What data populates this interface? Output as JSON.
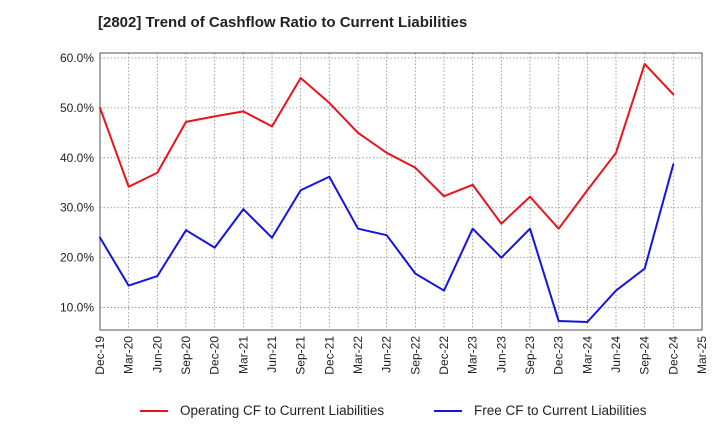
{
  "title": "[2802]  Trend of Cashflow Ratio to Current Liabilities",
  "colors": {
    "operating": "#e8141a",
    "free": "#1414e0",
    "grid": "#888888",
    "axis": "#555555"
  },
  "chart_data": {
    "type": "line",
    "title": "[2802]  Trend of Cashflow Ratio to Current Liabilities",
    "x": [
      "Dec-19",
      "Mar-20",
      "Jun-20",
      "Sep-20",
      "Dec-20",
      "Mar-21",
      "Jun-21",
      "Sep-21",
      "Dec-21",
      "Mar-22",
      "Jun-22",
      "Sep-22",
      "Dec-22",
      "Mar-23",
      "Jun-23",
      "Sep-23",
      "Dec-23",
      "Mar-24",
      "Jun-24",
      "Sep-24",
      "Dec-24",
      "Mar-25"
    ],
    "y_ticks": [
      "10.0%",
      "20.0%",
      "30.0%",
      "40.0%",
      "50.0%",
      "60.0%"
    ],
    "ylim": [
      5.5,
      61
    ],
    "grid": true,
    "legend_position": "bottom",
    "series": [
      {
        "name": "Operating CF to Current Liabilities",
        "color": "#e8141a",
        "values": [
          50.0,
          34.2,
          37.0,
          47.2,
          48.3,
          49.3,
          46.3,
          56.0,
          51.0,
          45.0,
          41.0,
          38.0,
          32.3,
          34.6,
          26.8,
          32.2,
          25.8,
          33.5,
          41.0,
          58.8,
          52.7,
          null
        ]
      },
      {
        "name": "Free CF to Current Liabilities",
        "color": "#1414e0",
        "values": [
          24.0,
          14.4,
          16.3,
          25.5,
          22.0,
          29.7,
          24.0,
          33.5,
          36.2,
          25.8,
          24.5,
          16.8,
          13.4,
          25.8,
          20.0,
          25.8,
          7.3,
          7.1,
          13.4,
          17.8,
          38.7,
          null
        ]
      }
    ]
  }
}
